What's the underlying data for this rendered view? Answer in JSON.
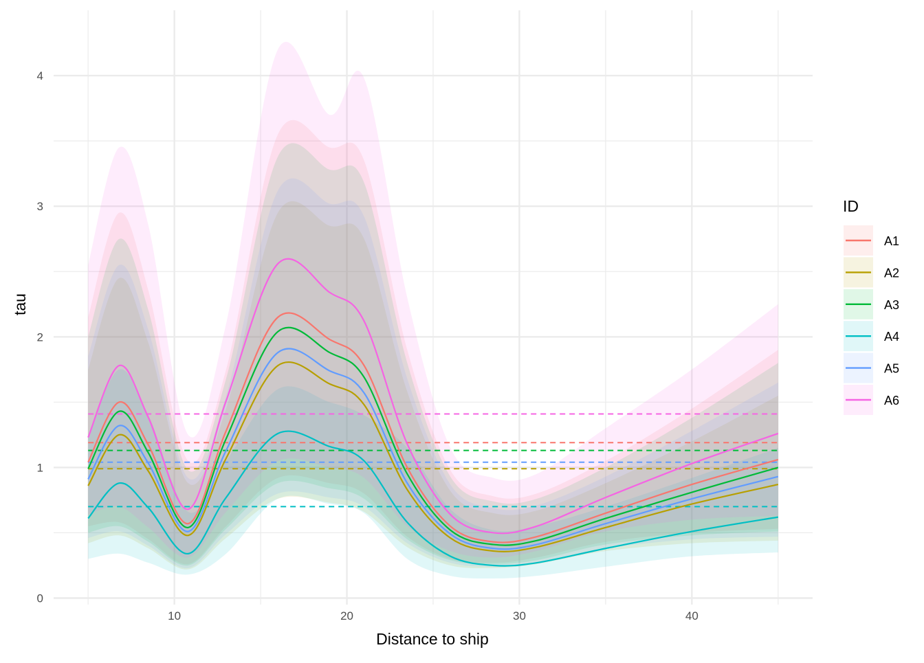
{
  "chart_data": {
    "type": "line",
    "title": "",
    "xlabel": "Distance to ship",
    "ylabel": "tau",
    "xlim": [
      3,
      47
    ],
    "ylim": [
      -0.05,
      4.5
    ],
    "x_ticks": [
      10,
      20,
      30,
      40
    ],
    "x_tick_labels": [
      "10",
      "20",
      "30",
      "40"
    ],
    "y_ticks": [
      0,
      1,
      2,
      3,
      4
    ],
    "y_tick_labels": [
      "0",
      "1",
      "2",
      "3",
      "4"
    ],
    "x_minor_gridlines": [
      5,
      15,
      25,
      35,
      45
    ],
    "y_minor_gridlines": [
      0.5,
      1.5,
      2.5,
      3.5
    ],
    "grid": true,
    "legend": {
      "title": "ID",
      "position": "right"
    },
    "x": [
      5,
      6.8,
      8.5,
      10.8,
      13,
      16,
      19,
      21,
      23.5,
      26,
      28.5,
      31,
      35,
      40,
      45
    ],
    "series": [
      {
        "name": "A1",
        "color": "#F8766D",
        "values": [
          1.04,
          1.5,
          1.17,
          0.57,
          1.28,
          2.15,
          1.98,
          1.78,
          1.0,
          0.55,
          0.43,
          0.47,
          0.65,
          0.87,
          1.06
        ],
        "lower": [
          0.55,
          0.58,
          0.45,
          0.26,
          0.55,
          0.92,
          0.88,
          0.8,
          0.47,
          0.3,
          0.27,
          0.31,
          0.43,
          0.5,
          0.53
        ],
        "upper": [
          2.15,
          2.95,
          2.35,
          1.05,
          1.75,
          3.55,
          3.45,
          3.35,
          1.9,
          0.98,
          0.78,
          0.8,
          1.05,
          1.45,
          1.9
        ],
        "reference": 1.19
      },
      {
        "name": "A2",
        "color": "#B79F00",
        "values": [
          0.86,
          1.25,
          0.97,
          0.48,
          1.07,
          1.78,
          1.64,
          1.48,
          0.83,
          0.46,
          0.36,
          0.39,
          0.54,
          0.72,
          0.87
        ],
        "lower": [
          0.42,
          0.48,
          0.38,
          0.22,
          0.46,
          0.76,
          0.73,
          0.66,
          0.39,
          0.25,
          0.23,
          0.26,
          0.36,
          0.42,
          0.44
        ],
        "upper": [
          1.75,
          2.45,
          1.95,
          0.88,
          1.45,
          2.95,
          2.85,
          2.75,
          1.58,
          0.82,
          0.65,
          0.67,
          0.88,
          1.2,
          1.55
        ],
        "reference": 0.99
      },
      {
        "name": "A3",
        "color": "#00BA38",
        "values": [
          0.99,
          1.43,
          1.11,
          0.54,
          1.22,
          2.04,
          1.88,
          1.69,
          0.95,
          0.52,
          0.41,
          0.44,
          0.61,
          0.81,
          1.0
        ],
        "lower": [
          0.5,
          0.55,
          0.43,
          0.25,
          0.53,
          0.88,
          0.84,
          0.76,
          0.45,
          0.29,
          0.26,
          0.29,
          0.41,
          0.48,
          0.51
        ],
        "upper": [
          2.0,
          2.75,
          2.2,
          0.98,
          1.68,
          3.38,
          3.28,
          3.18,
          1.8,
          0.93,
          0.74,
          0.76,
          1.0,
          1.38,
          1.8
        ],
        "reference": 1.13
      },
      {
        "name": "A4",
        "color": "#00BFC4",
        "values": [
          0.61,
          0.88,
          0.69,
          0.34,
          0.77,
          1.26,
          1.16,
          1.05,
          0.58,
          0.32,
          0.25,
          0.27,
          0.38,
          0.51,
          0.62
        ],
        "lower": [
          0.3,
          0.34,
          0.27,
          0.18,
          0.34,
          0.76,
          0.72,
          0.65,
          0.3,
          0.17,
          0.15,
          0.17,
          0.24,
          0.32,
          0.35
        ],
        "upper": [
          1.25,
          1.75,
          1.4,
          0.66,
          1.05,
          1.6,
          1.5,
          1.4,
          1.15,
          0.68,
          0.52,
          0.55,
          0.7,
          0.92,
          1.15
        ],
        "reference": 0.7
      },
      {
        "name": "A5",
        "color": "#619CFF",
        "values": [
          0.91,
          1.32,
          1.03,
          0.51,
          1.13,
          1.88,
          1.74,
          1.57,
          0.88,
          0.49,
          0.38,
          0.41,
          0.57,
          0.76,
          0.93
        ],
        "lower": [
          0.46,
          0.51,
          0.4,
          0.23,
          0.49,
          0.8,
          0.77,
          0.7,
          0.42,
          0.27,
          0.24,
          0.27,
          0.38,
          0.45,
          0.47
        ],
        "upper": [
          1.85,
          2.55,
          2.05,
          0.92,
          1.55,
          3.12,
          3.02,
          2.92,
          1.68,
          0.87,
          0.69,
          0.71,
          0.93,
          1.28,
          1.65
        ],
        "reference": 1.04
      },
      {
        "name": "A6",
        "color": "#F564E3",
        "values": [
          1.23,
          1.78,
          1.38,
          0.68,
          1.51,
          2.56,
          2.34,
          2.12,
          1.18,
          0.64,
          0.5,
          0.55,
          0.77,
          1.03,
          1.26
        ],
        "lower": [
          0.64,
          0.7,
          0.54,
          0.31,
          0.66,
          1.05,
          1.0,
          0.92,
          0.55,
          0.36,
          0.31,
          0.36,
          0.51,
          0.6,
          0.63
        ],
        "upper": [
          2.55,
          3.45,
          2.85,
          1.25,
          2.1,
          4.2,
          3.7,
          3.98,
          2.3,
          1.15,
          0.92,
          0.95,
          1.3,
          1.75,
          2.25
        ],
        "reference": 1.41
      }
    ]
  }
}
